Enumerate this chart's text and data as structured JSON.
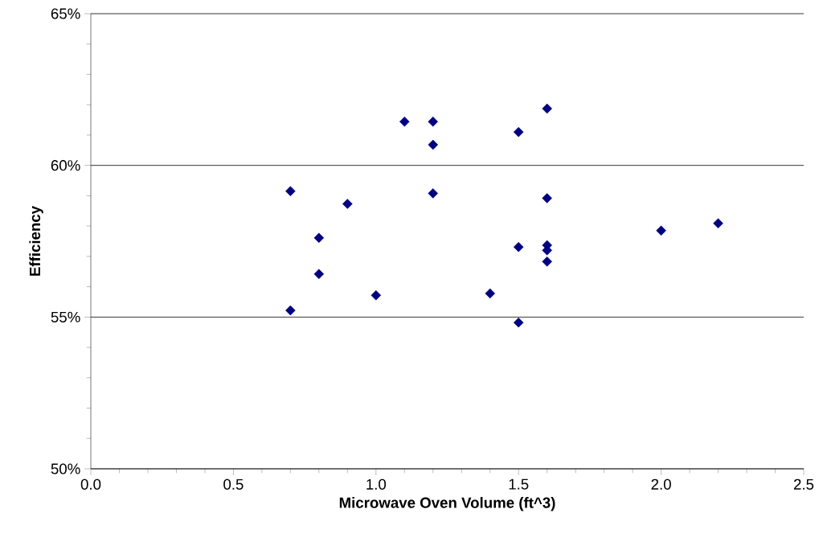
{
  "chart_data": {
    "type": "scatter",
    "xlabel": "Microwave Oven Volume (ft^3)",
    "ylabel": "Efficiency",
    "x": [
      0.7,
      0.7,
      0.8,
      0.8,
      0.9,
      1.0,
      1.1,
      1.2,
      1.2,
      1.2,
      1.4,
      1.5,
      1.5,
      1.5,
      1.6,
      1.6,
      1.6,
      1.6,
      1.6,
      2.0,
      2.2
    ],
    "values": [
      59.15,
      55.22,
      57.61,
      56.42,
      58.73,
      55.72,
      61.44,
      61.44,
      60.68,
      59.08,
      55.78,
      61.1,
      57.31,
      54.82,
      61.87,
      58.92,
      57.37,
      57.2,
      56.83,
      57.85,
      58.09
    ],
    "color": "#000080",
    "marker": "diamond",
    "grid": "y",
    "xlim": [
      0,
      2.5
    ],
    "ylim": [
      50,
      65
    ],
    "xticks": [
      {
        "value": 0,
        "label": "0.0"
      },
      {
        "value": 0.5,
        "label": "0.5"
      },
      {
        "value": 1,
        "label": "1.0"
      },
      {
        "value": 1.5,
        "label": "1.5"
      },
      {
        "value": 2,
        "label": "2.0"
      },
      {
        "value": 2.5,
        "label": "2.5"
      }
    ],
    "yticks": [
      {
        "value": 50,
        "label": "50%"
      },
      {
        "value": 55,
        "label": "55%"
      },
      {
        "value": 60,
        "label": "60%"
      },
      {
        "value": 65,
        "label": "65%"
      }
    ]
  }
}
